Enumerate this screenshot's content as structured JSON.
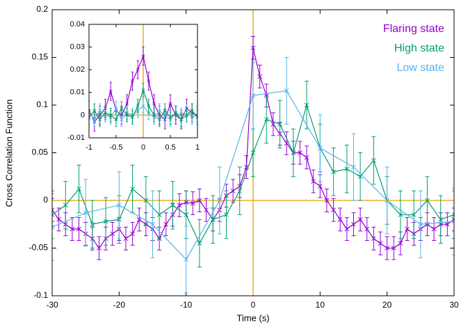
{
  "chart_data": [
    {
      "type": "line",
      "x_label": "Time (s)",
      "y_label": "Cross Correlation Function",
      "xlim": [
        -30,
        30
      ],
      "ylim": [
        -0.1,
        0.2
      ],
      "xticks": [
        -30,
        -20,
        -10,
        0,
        10,
        20,
        30
      ],
      "yticks": [
        -0.1,
        -0.05,
        0,
        0.05,
        0.1,
        0.15,
        0.2
      ],
      "reference_lines": {
        "x": 0,
        "y": 0,
        "color": "#e69f00"
      },
      "legend": "top-right",
      "series": [
        {
          "name": "Flaring state",
          "color": "#9400d3",
          "error": 0.012,
          "x": [
            -30,
            -29,
            -28,
            -27,
            -26,
            -25,
            -24,
            -23,
            -22,
            -21,
            -20,
            -19,
            -18,
            -17,
            -16,
            -15,
            -14,
            -13,
            -12,
            -11,
            -10,
            -9,
            -8,
            -7,
            -6,
            -5,
            -4,
            -3,
            -2,
            -1,
            0,
            1,
            2,
            3,
            4,
            5,
            6,
            7,
            8,
            9,
            10,
            11,
            12,
            13,
            14,
            15,
            16,
            17,
            18,
            19,
            20,
            21,
            22,
            23,
            24,
            25,
            26,
            27,
            28,
            29,
            30
          ],
          "values": [
            -0.01,
            -0.02,
            -0.025,
            -0.03,
            -0.03,
            -0.035,
            -0.04,
            -0.05,
            -0.04,
            -0.035,
            -0.03,
            -0.04,
            -0.035,
            -0.02,
            -0.025,
            -0.03,
            -0.04,
            -0.025,
            -0.015,
            -0.005,
            -0.002,
            -0.003,
            0,
            -0.01,
            -0.02,
            -0.01,
            0.005,
            0.01,
            0.015,
            0.035,
            0.16,
            0.13,
            0.11,
            0.08,
            0.07,
            0.06,
            0.05,
            0.05,
            0.045,
            0.02,
            0.015,
            0,
            -0.01,
            -0.02,
            -0.03,
            -0.025,
            -0.02,
            -0.03,
            -0.04,
            -0.045,
            -0.05,
            -0.05,
            -0.045,
            -0.03,
            -0.035,
            -0.03,
            -0.025,
            -0.03,
            -0.025,
            -0.025,
            -0.02
          ]
        },
        {
          "name": "High state",
          "color": "#009e73",
          "error": 0.025,
          "x": [
            -30,
            -28,
            -26,
            -24,
            -22,
            -20,
            -18,
            -16,
            -14,
            -12,
            -10,
            -8,
            -6,
            -4,
            -2,
            0,
            2,
            4,
            6,
            8,
            10,
            12,
            14,
            16,
            18,
            20,
            22,
            24,
            26,
            28,
            30
          ],
          "values": [
            -0.015,
            -0.005,
            0.012,
            -0.025,
            -0.022,
            -0.02,
            0.012,
            0,
            -0.015,
            -0.005,
            -0.015,
            -0.045,
            -0.02,
            -0.015,
            0.01,
            0.05,
            0.085,
            0.08,
            0.05,
            0.1,
            0.055,
            0.03,
            0.033,
            0.025,
            0.042,
            0,
            -0.015,
            -0.015,
            0,
            -0.02,
            -0.015
          ]
        },
        {
          "name": "Low state",
          "color": "#56b4e9",
          "error": 0.035,
          "x": [
            -30,
            -25,
            -20,
            -15,
            -10,
            -5,
            0,
            5,
            10,
            15,
            20,
            25,
            30
          ],
          "values": [
            -0.028,
            -0.013,
            -0.005,
            -0.025,
            -0.062,
            0,
            0.11,
            0.115,
            0.055,
            0.035,
            0,
            -0.025,
            -0.022
          ]
        }
      ]
    },
    {
      "type": "line",
      "xlim": [
        -1,
        1
      ],
      "ylim": [
        -0.01,
        0.04
      ],
      "xticks": [
        -1,
        -0.5,
        0,
        0.5,
        1
      ],
      "yticks": [
        -0.01,
        0,
        0.01,
        0.02,
        0.03,
        0.04
      ],
      "reference_lines": {
        "x": 0,
        "y": 0,
        "color": "#e69f00"
      },
      "series": [
        {
          "color": "#9400d3",
          "error": 0.004,
          "x": [
            -1,
            -0.9,
            -0.8,
            -0.7,
            -0.6,
            -0.5,
            -0.4,
            -0.3,
            -0.2,
            -0.1,
            0,
            0.1,
            0.2,
            0.3,
            0.4,
            0.5,
            0.6,
            0.7,
            0.8,
            0.9,
            1
          ],
          "values": [
            0.002,
            -0.003,
            0,
            0.003,
            0.0105,
            0.002,
            0,
            0.005,
            0.015,
            0.02,
            0.026,
            0.015,
            0.005,
            0,
            -0.002,
            0.005,
            0,
            -0.002,
            0.003,
            0.001,
            0
          ]
        },
        {
          "color": "#56b4e9",
          "error": 0.003,
          "x": [
            -1,
            -0.9,
            -0.8,
            -0.7,
            -0.6,
            -0.5,
            -0.4,
            -0.3,
            -0.2,
            -0.1,
            0,
            0.1,
            0.2,
            0.3,
            0.4,
            0.5,
            0.6,
            0.7,
            0.8,
            0.9,
            1
          ],
          "values": [
            0.001,
            -0.002,
            0.002,
            0,
            -0.001,
            0.003,
            -0.002,
            0.001,
            0,
            0.002,
            0.004,
            0.001,
            -0.001,
            0.002,
            0,
            -0.002,
            0.001,
            0,
            0.002,
            -0.001,
            0
          ]
        },
        {
          "color": "#009e73",
          "error": 0.003,
          "x": [
            -1,
            -0.9,
            -0.8,
            -0.7,
            -0.6,
            -0.5,
            -0.4,
            -0.3,
            -0.2,
            -0.1,
            0,
            0.1,
            0.2,
            0.3,
            0.4,
            0.5,
            0.6,
            0.7,
            0.8,
            0.9,
            1
          ],
          "values": [
            -0.001,
            0.002,
            -0.002,
            0.001,
            0,
            -0.002,
            0.003,
            0,
            -0.001,
            0.004,
            0.011,
            0.004,
            0,
            -0.002,
            0.002,
            -0.001,
            0.001,
            -0.002,
            0,
            0.002,
            -0.001
          ]
        }
      ]
    }
  ]
}
